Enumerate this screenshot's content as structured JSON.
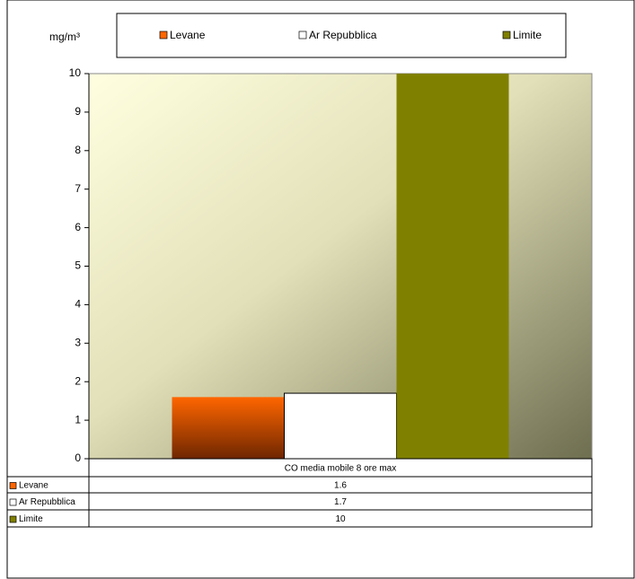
{
  "chart_data": {
    "type": "bar",
    "y_label": "mg/m³",
    "categories": [
      "CO media mobile 8 ore max"
    ],
    "series": [
      {
        "name": "Levane",
        "color": "#ff6600",
        "values": [
          1.6
        ]
      },
      {
        "name": "Ar Repubblica",
        "color": "#ffffff",
        "values": [
          1.7
        ]
      },
      {
        "name": "Limite",
        "color": "#808000",
        "values": [
          10
        ]
      }
    ],
    "ylim": [
      0,
      10
    ],
    "yticks": [
      0,
      1,
      2,
      3,
      4,
      5,
      6,
      7,
      8,
      9,
      10
    ],
    "grid": false,
    "legend": "top",
    "data_table": true
  }
}
